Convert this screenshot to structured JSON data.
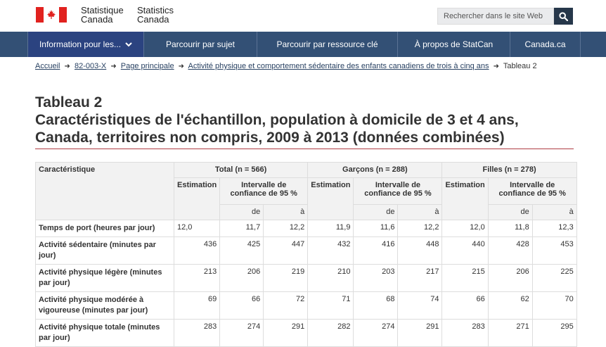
{
  "header": {
    "signature_fr_line1": "Statistique",
    "signature_fr_line2": "Canada",
    "signature_en_line1": "Statistics",
    "signature_en_line2": "Canada",
    "search_placeholder": "Rechercher dans le site Web",
    "flag_color": "#e1221f"
  },
  "nav": {
    "items": [
      {
        "label": "Information pour les...",
        "icon": "chevron-down-icon"
      },
      {
        "label": "Parcourir par sujet"
      },
      {
        "label": "Parcourir par ressource clé"
      },
      {
        "label": "À propos de StatCan"
      },
      {
        "label": "Canada.ca"
      }
    ],
    "color": "#335075"
  },
  "breadcrumb": {
    "items": [
      "Accueil",
      "82-003-X",
      "Page principale",
      "Activité physique et comportement sédentaire des enfants canadiens de trois à cinq ans"
    ],
    "current": "Tableau 2"
  },
  "title": {
    "line1": "Tableau 2",
    "line2": "Caractéristiques de l'échantillon, population à domicile de 3 et 4 ans,",
    "line3": "Canada, territoires non compris, 2009 à 2013 (données combinées)"
  },
  "table": {
    "col_characteristic": "Caractéristique",
    "groups": [
      "Total (n = 566)",
      "Garçons (n = 288)",
      "Filles (n = 278)"
    ],
    "estimation": "Estimation",
    "ci_line1": "Intervalle de",
    "ci_line2": "confiance de 95 %",
    "from": "de",
    "to": "à",
    "rows": [
      {
        "label": "Temps de port (heures par jour)",
        "values": [
          "12,0",
          "11,7",
          "12,2",
          "11,9",
          "11,6",
          "12,2",
          "12,0",
          "11,8",
          "12,3"
        ]
      },
      {
        "label": "Activité sédentaire (minutes par jour)",
        "values": [
          "436",
          "425",
          "447",
          "432",
          "416",
          "448",
          "440",
          "428",
          "453"
        ]
      },
      {
        "label": "Activité physique légère (minutes par jour)",
        "values": [
          "213",
          "206",
          "219",
          "210",
          "203",
          "217",
          "215",
          "206",
          "225"
        ]
      },
      {
        "label": "Activité physique modérée à vigoureuse (minutes par jour)",
        "values": [
          "69",
          "66",
          "72",
          "71",
          "68",
          "74",
          "66",
          "62",
          "70"
        ]
      },
      {
        "label": "Activité physique totale (minutes par jour)",
        "values": [
          "283",
          "274",
          "291",
          "282",
          "274",
          "291",
          "283",
          "271",
          "295"
        ]
      }
    ]
  }
}
